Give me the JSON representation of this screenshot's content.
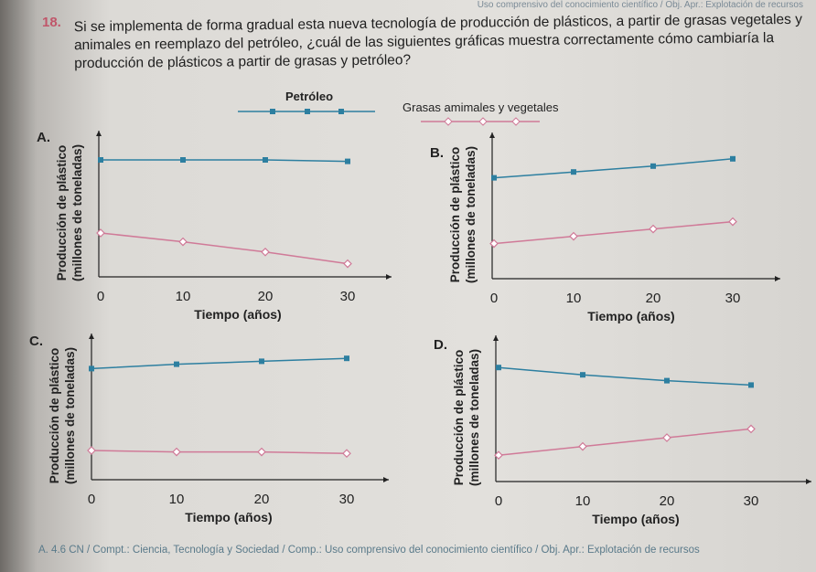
{
  "header": "Uso comprensivo del conocimiento científico / Obj. Apr.: Explotación de recursos",
  "question": {
    "number": "18.",
    "text": "Si se implementa de forma gradual esta nueva tecnología de producción de plásticos, a partir de grasas vegetales y animales en reemplazo del petróleo, ¿cuál de las siguientes gráficas muestra correctamente cómo cambiaría la producción de plásticos a partir de grasas y petróleo?"
  },
  "legend": {
    "petroleo": "Petróleo",
    "grasas": "Grasas amimales y vegetales"
  },
  "colors": {
    "petroleo": "#2d7fa0",
    "grasas": "#d07a98"
  },
  "footer": "A. 4.6 CN / Compt.: Ciencia, Tecnología y Sociedad / Comp.: Uso comprensivo del conocimiento científico / Obj. Apr.: Explotación de recursos",
  "chart_data": [
    {
      "option": "A.",
      "type": "line",
      "xlabel": "Tiempo (años)",
      "ylabel": "Producción de plástico",
      "ylabel2": "(millones de toneladas)",
      "xticks": [
        "0",
        "10",
        "20",
        "30"
      ],
      "x": [
        0,
        10,
        20,
        30
      ],
      "series": [
        {
          "name": "Petróleo",
          "values": [
            8,
            8,
            8,
            7.9
          ]
        },
        {
          "name": "Grasas amimales y vegetales",
          "values": [
            3,
            2.4,
            1.7,
            0.9
          ]
        }
      ]
    },
    {
      "option": "B.",
      "type": "line",
      "xlabel": "Tiempo (años)",
      "ylabel": "Producción de plástico",
      "ylabel2": "(millones de toneladas)",
      "xticks": [
        "0",
        "10",
        "20",
        "30"
      ],
      "x": [
        0,
        10,
        20,
        30
      ],
      "series": [
        {
          "name": "Petróleo",
          "values": [
            6.9,
            7.3,
            7.7,
            8.2
          ]
        },
        {
          "name": "Grasas amimales y vegetales",
          "values": [
            2.4,
            2.9,
            3.4,
            3.9
          ]
        }
      ]
    },
    {
      "option": "C.",
      "type": "line",
      "xlabel": "Tiempo (años)",
      "ylabel": "Producción de plástico",
      "ylabel2": "(millones de toneladas)",
      "xticks": [
        "0",
        "10",
        "20",
        "30"
      ],
      "x": [
        0,
        10,
        20,
        30
      ],
      "series": [
        {
          "name": "Petróleo",
          "values": [
            7.6,
            7.9,
            8.1,
            8.3
          ]
        },
        {
          "name": "Grasas amimales y vegetales",
          "values": [
            2,
            1.9,
            1.9,
            1.8
          ]
        }
      ]
    },
    {
      "option": "D.",
      "type": "line",
      "xlabel": "Tiempo (años)",
      "ylabel": "Producción de plástico",
      "ylabel2": "(millones de toneladas)",
      "xticks": [
        "0",
        "10",
        "20",
        "30"
      ],
      "x": [
        0,
        10,
        20,
        30
      ],
      "series": [
        {
          "name": "Petróleo",
          "values": [
            7.8,
            7.3,
            6.9,
            6.6
          ]
        },
        {
          "name": "Grasas amimales y vegetales",
          "values": [
            1.8,
            2.4,
            3.0,
            3.6
          ]
        }
      ]
    }
  ]
}
